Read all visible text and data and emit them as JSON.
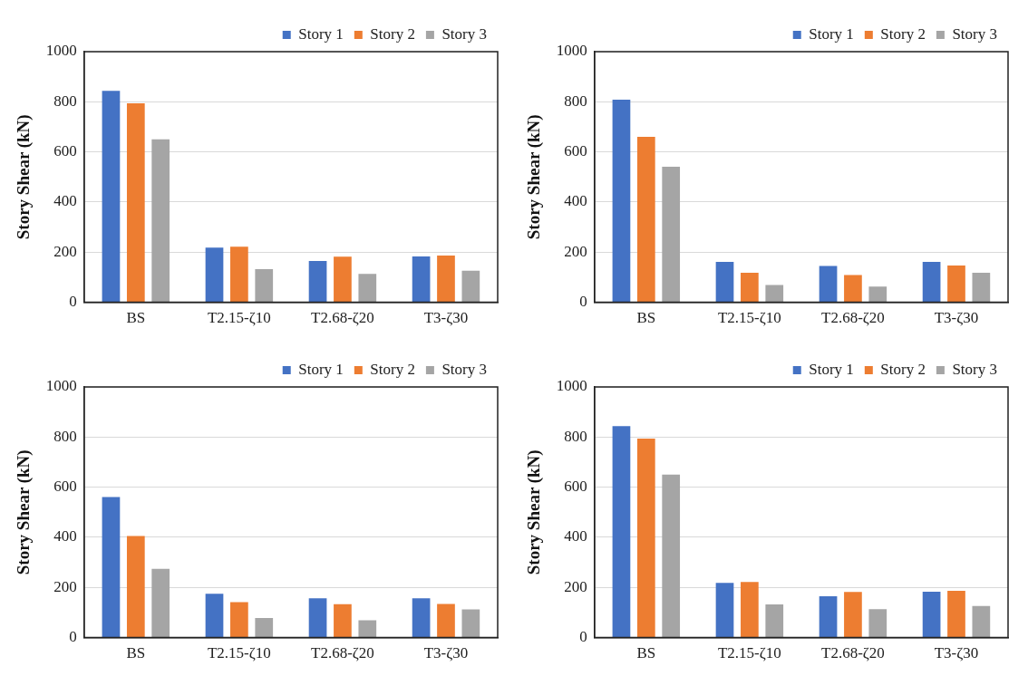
{
  "chart_data": [
    {
      "type": "bar",
      "ylabel": "Story Shear (kN)",
      "categories": [
        "BS",
        "T2.15-ζ10",
        "T2.68-ζ20",
        "T3-ζ30"
      ],
      "series": [
        {
          "name": "Story 1",
          "color": "#4472c4",
          "values": [
            844,
            218,
            165,
            183
          ]
        },
        {
          "name": "Story 2",
          "color": "#ed7d31",
          "values": [
            794,
            222,
            182,
            187
          ]
        },
        {
          "name": "Story 3",
          "color": "#a5a5a5",
          "values": [
            650,
            132,
            113,
            126
          ]
        }
      ],
      "ylim": [
        0,
        1000
      ],
      "yticks": [
        0,
        200,
        400,
        600,
        800,
        1000
      ],
      "grid": "y",
      "legend": "top right"
    },
    {
      "type": "bar",
      "ylabel": "Story Shear (kN)",
      "categories": [
        "BS",
        "T2.15-ζ10",
        "T2.68-ζ20",
        "T3-ζ30"
      ],
      "series": [
        {
          "name": "Story 1",
          "color": "#4472c4",
          "values": [
            808,
            161,
            145,
            161
          ]
        },
        {
          "name": "Story 2",
          "color": "#ed7d31",
          "values": [
            660,
            118,
            109,
            147
          ]
        },
        {
          "name": "Story 3",
          "color": "#a5a5a5",
          "values": [
            541,
            69,
            63,
            118
          ]
        }
      ],
      "ylim": [
        0,
        1000
      ],
      "yticks": [
        0,
        200,
        400,
        600,
        800,
        1000
      ],
      "grid": "y",
      "legend": "top right"
    },
    {
      "type": "bar",
      "ylabel": "Story Shear (kN)",
      "categories": [
        "BS",
        "T2.15-ζ10",
        "T2.68-ζ20",
        "T3-ζ30"
      ],
      "series": [
        {
          "name": "Story 1",
          "color": "#4472c4",
          "values": [
            561,
            175,
            157,
            157
          ]
        },
        {
          "name": "Story 2",
          "color": "#ed7d31",
          "values": [
            405,
            141,
            133,
            134
          ]
        },
        {
          "name": "Story 3",
          "color": "#a5a5a5",
          "values": [
            274,
            78,
            69,
            112
          ]
        }
      ],
      "ylim": [
        0,
        1000
      ],
      "yticks": [
        0,
        200,
        400,
        600,
        800,
        1000
      ],
      "grid": "y",
      "legend": "top right"
    },
    {
      "type": "bar",
      "ylabel": "Story Shear (kN)",
      "categories": [
        "BS",
        "T2.15-ζ10",
        "T2.68-ζ20",
        "T3-ζ30"
      ],
      "series": [
        {
          "name": "Story 1",
          "color": "#4472c4",
          "values": [
            844,
            218,
            165,
            183
          ]
        },
        {
          "name": "Story 2",
          "color": "#ed7d31",
          "values": [
            794,
            222,
            182,
            187
          ]
        },
        {
          "name": "Story 3",
          "color": "#a5a5a5",
          "values": [
            650,
            132,
            113,
            126
          ]
        }
      ],
      "ylim": [
        0,
        1000
      ],
      "yticks": [
        0,
        200,
        400,
        600,
        800,
        1000
      ],
      "grid": "y",
      "legend": "top right"
    }
  ]
}
